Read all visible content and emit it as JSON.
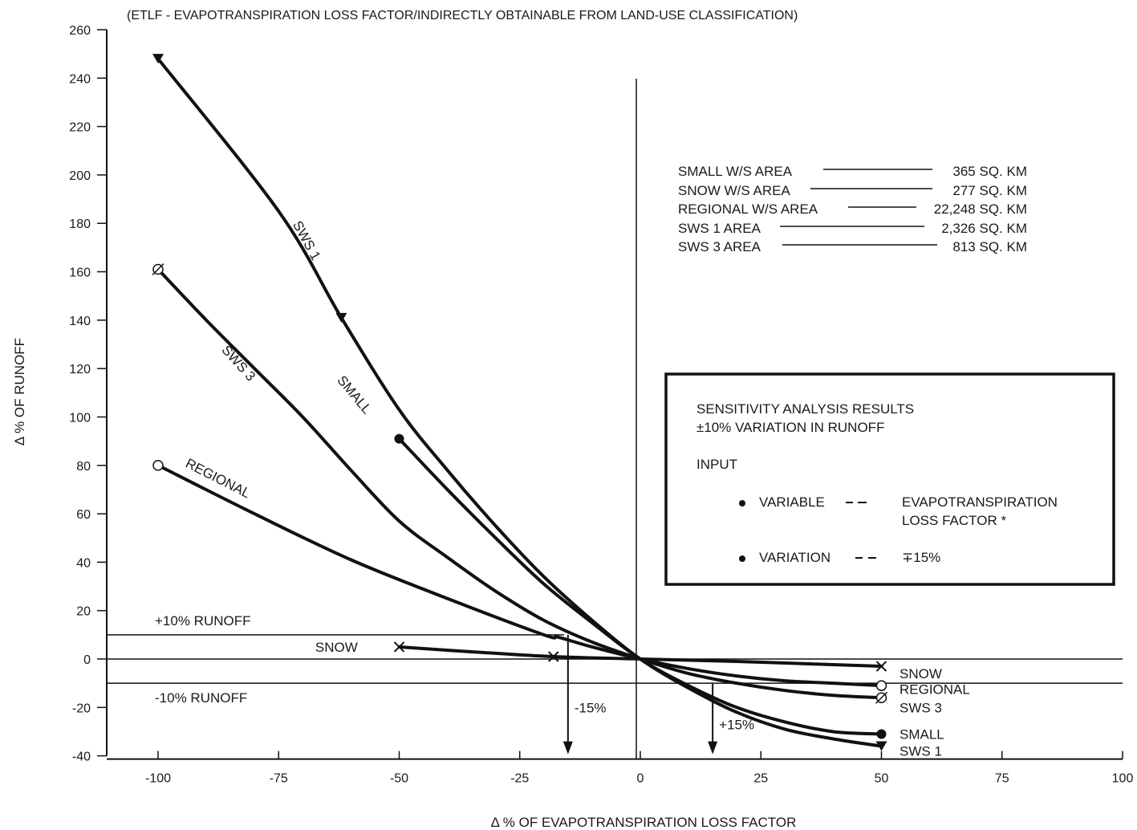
{
  "chart_data": {
    "type": "line",
    "title": "(ETLF - EVAPOTRANSPIRATION LOSS FACTOR/INDIRECTLY OBTAINABLE FROM LAND-USE CLASSIFICATION)",
    "xlabel": "Δ % OF EVAPOTRANSPIRATION LOSS FACTOR",
    "ylabel": "Δ % OF RUNOFF",
    "xlim": [
      -110,
      100
    ],
    "ylim": [
      -40,
      260
    ],
    "x_ticks": [
      -100,
      -75,
      -50,
      -25,
      0,
      25,
      50,
      75,
      100
    ],
    "x_tick_labels": [
      "-100",
      "-75",
      "-50",
      "-25",
      "0",
      "25",
      "50",
      "75",
      "100"
    ],
    "y_ticks": [
      -40,
      -20,
      0,
      20,
      40,
      60,
      80,
      100,
      120,
      140,
      160,
      180,
      200,
      220,
      240,
      260
    ],
    "y_tick_labels": [
      "-40",
      "-20",
      "0",
      "20",
      "40",
      "60",
      "80",
      "100",
      "120",
      "140",
      "160",
      "180",
      "200",
      "220",
      "240",
      "260"
    ],
    "grid": false,
    "series": [
      {
        "name": "SWS 1",
        "marker": "triangle-down",
        "label_left": "SWS 1",
        "label_right": "SWS 1",
        "points": [
          [
            -100,
            248
          ],
          [
            -75,
            185
          ],
          [
            -62,
            141
          ],
          [
            -50,
            103
          ],
          [
            -40,
            78
          ],
          [
            -30,
            55
          ],
          [
            -20,
            34
          ],
          [
            -10,
            16
          ],
          [
            0,
            0
          ],
          [
            10,
            -12
          ],
          [
            20,
            -22
          ],
          [
            30,
            -29
          ],
          [
            40,
            -33
          ],
          [
            50,
            -36
          ]
        ],
        "markers": [
          [
            -100,
            248
          ],
          [
            -62,
            141
          ],
          [
            50,
            -36
          ]
        ]
      },
      {
        "name": "SWS 3",
        "marker": "circle-slash",
        "label_left": "SWS 3",
        "label_right": "SWS 3",
        "points": [
          [
            -100,
            161
          ],
          [
            -90,
            140
          ],
          [
            -80,
            120
          ],
          [
            -70,
            100
          ],
          [
            -60,
            78
          ],
          [
            -50,
            57
          ],
          [
            -40,
            42
          ],
          [
            -30,
            28
          ],
          [
            -20,
            16
          ],
          [
            -10,
            7
          ],
          [
            0,
            0
          ],
          [
            10,
            -6
          ],
          [
            20,
            -10
          ],
          [
            30,
            -13
          ],
          [
            40,
            -15
          ],
          [
            50,
            -16
          ]
        ],
        "markers": [
          [
            -100,
            161
          ],
          [
            50,
            -16
          ]
        ]
      },
      {
        "name": "SMALL",
        "marker": "filled-circle",
        "label_left": "SMALL",
        "label_right": "SMALL",
        "points": [
          [
            -50,
            91
          ],
          [
            -40,
            70
          ],
          [
            -30,
            50
          ],
          [
            -20,
            31
          ],
          [
            -10,
            15
          ],
          [
            0,
            0
          ],
          [
            10,
            -11
          ],
          [
            20,
            -20
          ],
          [
            30,
            -26
          ],
          [
            40,
            -30
          ],
          [
            50,
            -31
          ]
        ],
        "markers": [
          [
            -50,
            91
          ],
          [
            50,
            -31
          ]
        ]
      },
      {
        "name": "REGIONAL",
        "marker": "open-circle",
        "label_left": "REGIONAL",
        "label_right": "REGIONAL",
        "points": [
          [
            -100,
            80
          ],
          [
            -80,
            60
          ],
          [
            -60,
            41
          ],
          [
            -40,
            25
          ],
          [
            -20,
            10
          ],
          [
            -17,
            9
          ],
          [
            -10,
            5
          ],
          [
            0,
            0
          ],
          [
            10,
            -4
          ],
          [
            20,
            -7
          ],
          [
            30,
            -9
          ],
          [
            40,
            -10
          ],
          [
            50,
            -11
          ]
        ],
        "markers": [
          [
            -100,
            80
          ],
          [
            50,
            -11
          ]
        ]
      },
      {
        "name": "SNOW",
        "marker": "x",
        "label_left": "SNOW",
        "label_right": "SNOW",
        "points": [
          [
            -50,
            5
          ],
          [
            -35,
            3
          ],
          [
            -18,
            1
          ],
          [
            0,
            0
          ],
          [
            20,
            -1
          ],
          [
            35,
            -2
          ],
          [
            50,
            -3
          ]
        ],
        "markers": [
          [
            -50,
            5
          ],
          [
            -18,
            1
          ],
          [
            50,
            -3
          ]
        ]
      }
    ],
    "reference_lines": [
      {
        "label": "+10% RUNOFF",
        "y": 10
      },
      {
        "label": "-10% RUNOFF",
        "y": -10
      }
    ],
    "arrow_annotations": [
      {
        "label": "-15%",
        "x": -15
      },
      {
        "label": "+15%",
        "x": 15
      }
    ],
    "area_table": [
      {
        "name": "SMALL W/S AREA",
        "value": "365 SQ. KM"
      },
      {
        "name": "SNOW W/S AREA",
        "value": "277 SQ. KM"
      },
      {
        "name": "REGIONAL W/S AREA",
        "value": "22,248 SQ. KM"
      },
      {
        "name": "SWS 1 AREA",
        "value": "2,326 SQ. KM"
      },
      {
        "name": "SWS 3 AREA",
        "value": "813 SQ. KM"
      }
    ],
    "info_box": {
      "line1": "SENSITIVITY ANALYSIS RESULTS",
      "line2": "±10% VARIATION IN RUNOFF",
      "input_label": "INPUT",
      "variable_label": "VARIABLE",
      "variable_value_1": "EVAPOTRANSPIRATION",
      "variable_value_2": "LOSS FACTOR *",
      "variation_label": "VARIATION",
      "variation_value": "∓15%"
    }
  }
}
